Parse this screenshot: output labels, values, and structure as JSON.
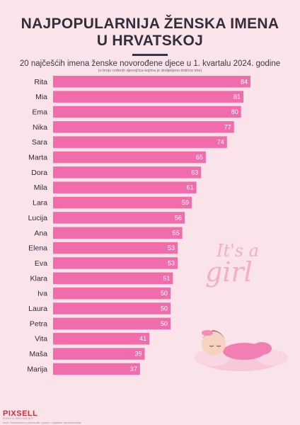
{
  "header": {
    "title_line1": "NAJPOPULARNIJA ŽENSKA IMENA",
    "title_line2": "U HRVATSKOJ",
    "subtitle": "20 najčešćih imena ženske novorođene djece u 1. kvartalu 2024. godine",
    "note": "(u broju rođenih djevojčica kojima je dodijeljeno dotično ime)"
  },
  "decoration": {
    "line1": "It's a",
    "line2": "girl"
  },
  "footer": {
    "brand": "PIXSELL",
    "brand_sub": "PHOTO & VIDEO AGENCY",
    "source": "Izvor: Ministarstvo pravosuđa, uprave i digitalne transformacije"
  },
  "colors": {
    "bar": "#f06cab",
    "background": "#fbe3ea"
  },
  "chart_data": {
    "type": "bar",
    "orientation": "horizontal",
    "categories": [
      "Rita",
      "Mia",
      "Ema",
      "Nika",
      "Sara",
      "Marta",
      "Dora",
      "Mila",
      "Lara",
      "Lucija",
      "Ana",
      "Elena",
      "Eva",
      "Klara",
      "Iva",
      "Laura",
      "Petra",
      "Vita",
      "Maša",
      "Marija"
    ],
    "values": [
      84,
      81,
      80,
      77,
      74,
      65,
      63,
      61,
      59,
      56,
      55,
      53,
      53,
      51,
      50,
      50,
      50,
      41,
      39,
      37
    ],
    "xlim": [
      0,
      84
    ]
  }
}
